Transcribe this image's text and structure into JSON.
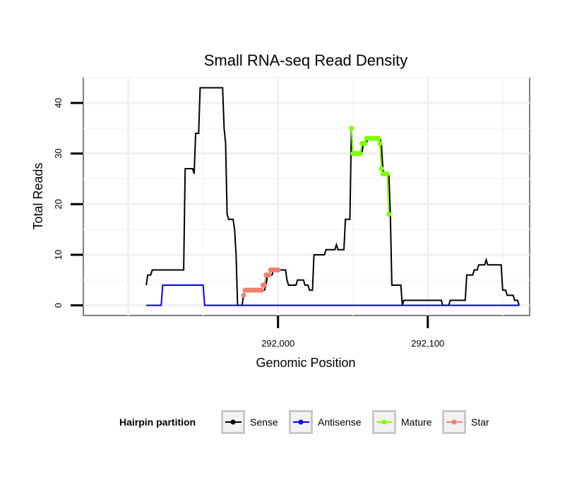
{
  "chart_data": {
    "type": "line",
    "title": "Small RNA-seq Read Density",
    "xlabel": "Genomic Position",
    "ylabel": "Total Reads",
    "xlim": [
      291870,
      292168
    ],
    "ylim": [
      -2,
      45
    ],
    "x_ticks": [
      292000,
      292100
    ],
    "x_tick_labels": [
      "292,000",
      "292,100"
    ],
    "y_ticks": [
      0,
      10,
      20,
      30,
      40
    ],
    "y_tick_labels": [
      "0",
      "10",
      "20",
      "30",
      "40"
    ],
    "grid": true,
    "legend": {
      "title": "Hairpin partition",
      "position": "bottom",
      "entries": [
        "Sense",
        "Antisense",
        "Mature",
        "Star"
      ]
    },
    "series": [
      {
        "name": "Sense",
        "color": "#000000",
        "markers": false,
        "points": [
          [
            291912,
            4
          ],
          [
            291913,
            6
          ],
          [
            291915,
            6
          ],
          [
            291916,
            7
          ],
          [
            291937,
            7
          ],
          [
            291938,
            27
          ],
          [
            291943,
            27
          ],
          [
            291944,
            26
          ],
          [
            291945,
            34
          ],
          [
            291947,
            34
          ],
          [
            291948,
            43
          ],
          [
            291963,
            43
          ],
          [
            291964,
            35
          ],
          [
            291965,
            32
          ],
          [
            291966,
            18
          ],
          [
            291967,
            17
          ],
          [
            291970,
            17
          ],
          [
            291971,
            15
          ],
          [
            291972,
            10
          ],
          [
            291973,
            0
          ],
          [
            291976,
            0
          ],
          [
            291977,
            2
          ],
          [
            291978,
            3
          ],
          [
            291991,
            3
          ],
          [
            291992,
            4
          ],
          [
            291993,
            6
          ],
          [
            291996,
            6
          ],
          [
            291997,
            7
          ],
          [
            292005,
            7
          ],
          [
            292006,
            5
          ],
          [
            292007,
            4
          ],
          [
            292012,
            4
          ],
          [
            292013,
            5
          ],
          [
            292017,
            5
          ],
          [
            292018,
            4
          ],
          [
            292020,
            4
          ],
          [
            292021,
            3
          ],
          [
            292023,
            3
          ],
          [
            292024,
            10
          ],
          [
            292031,
            10
          ],
          [
            292032,
            11
          ],
          [
            292038,
            11
          ],
          [
            292039,
            12
          ],
          [
            292040,
            11
          ],
          [
            292044,
            11
          ],
          [
            292045,
            17
          ],
          [
            292048,
            17
          ],
          [
            292049,
            35
          ],
          [
            292050,
            30
          ],
          [
            292056,
            30
          ],
          [
            292057,
            32
          ],
          [
            292059,
            32
          ],
          [
            292060,
            33
          ],
          [
            292068,
            33
          ],
          [
            292069,
            32
          ],
          [
            292070,
            27
          ],
          [
            292071,
            26
          ],
          [
            292074,
            26
          ],
          [
            292075,
            18
          ],
          [
            292076,
            4
          ],
          [
            292082,
            4
          ],
          [
            292083,
            0
          ],
          [
            292084,
            1
          ],
          [
            292109,
            1
          ],
          [
            292110,
            0
          ],
          [
            292114,
            0
          ],
          [
            292115,
            1
          ],
          [
            292125,
            1
          ],
          [
            292126,
            6
          ],
          [
            292130,
            6
          ],
          [
            292131,
            7
          ],
          [
            292133,
            7
          ],
          [
            292134,
            8
          ],
          [
            292138,
            8
          ],
          [
            292139,
            9
          ],
          [
            292140,
            8
          ],
          [
            292149,
            8
          ],
          [
            292150,
            3
          ],
          [
            292152,
            3
          ],
          [
            292153,
            2
          ],
          [
            292157,
            2
          ],
          [
            292158,
            1
          ],
          [
            292160,
            1
          ],
          [
            292161,
            0
          ]
        ]
      },
      {
        "name": "Antisense",
        "color": "#0000ff",
        "markers": false,
        "points": [
          [
            291912,
            0
          ],
          [
            291922,
            0
          ],
          [
            291923,
            4
          ],
          [
            291950,
            4
          ],
          [
            291951,
            0
          ],
          [
            292161,
            0
          ]
        ]
      },
      {
        "name": "Mature",
        "color": "#7fff00",
        "markers": true,
        "points": [
          [
            292049,
            35
          ],
          [
            292050,
            30
          ],
          [
            292051,
            30
          ],
          [
            292052,
            30
          ],
          [
            292053,
            30
          ],
          [
            292054,
            30
          ],
          [
            292055,
            30
          ],
          [
            292056,
            32
          ],
          [
            292057,
            32
          ],
          [
            292058,
            32
          ],
          [
            292059,
            33
          ],
          [
            292060,
            33
          ],
          [
            292061,
            33
          ],
          [
            292062,
            33
          ],
          [
            292063,
            33
          ],
          [
            292064,
            33
          ],
          [
            292065,
            33
          ],
          [
            292066,
            33
          ],
          [
            292067,
            33
          ],
          [
            292068,
            32
          ],
          [
            292069,
            27
          ],
          [
            292070,
            26
          ],
          [
            292071,
            26
          ],
          [
            292072,
            26
          ],
          [
            292073,
            26
          ],
          [
            292074,
            18
          ]
        ]
      },
      {
        "name": "Star",
        "color": "#f08070",
        "markers": true,
        "points": [
          [
            291977,
            2
          ],
          [
            291978,
            3
          ],
          [
            291979,
            3
          ],
          [
            291980,
            3
          ],
          [
            291981,
            3
          ],
          [
            291982,
            3
          ],
          [
            291983,
            3
          ],
          [
            291984,
            3
          ],
          [
            291985,
            3
          ],
          [
            291986,
            3
          ],
          [
            291987,
            3
          ],
          [
            291988,
            3
          ],
          [
            291989,
            3
          ],
          [
            291990,
            4
          ],
          [
            291991,
            4
          ],
          [
            291992,
            6
          ],
          [
            291993,
            6
          ],
          [
            291994,
            6
          ],
          [
            291995,
            7
          ],
          [
            291996,
            7
          ],
          [
            291997,
            7
          ],
          [
            291998,
            7
          ],
          [
            291999,
            7
          ],
          [
            292000,
            7
          ]
        ]
      }
    ]
  }
}
